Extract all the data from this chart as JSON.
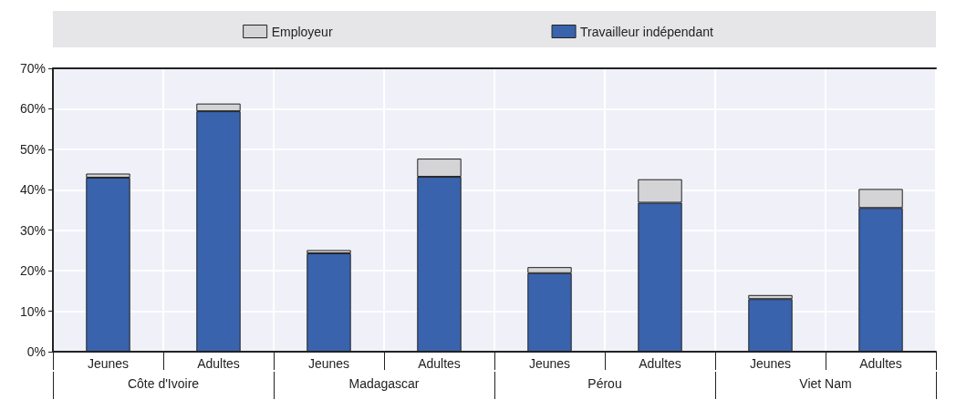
{
  "chart_data": {
    "type": "bar",
    "stacked": true,
    "categories": [
      "Jeunes",
      "Adultes",
      "Jeunes",
      "Adultes",
      "Jeunes",
      "Adultes",
      "Jeunes",
      "Adultes"
    ],
    "annotations": [
      "Côte d'Ivoire",
      "Madagascar",
      "Pérou",
      "Viet Nam"
    ],
    "series": [
      {
        "name": "Travailleur indépendant",
        "color": "#3a63ad",
        "values": [
          43.0,
          59.4,
          24.3,
          43.2,
          19.4,
          36.8,
          13.0,
          35.5
        ]
      },
      {
        "name": "Employeur",
        "color": "#d4d4d6",
        "values": [
          1.0,
          1.9,
          0.8,
          4.5,
          1.5,
          5.8,
          1.0,
          4.7
        ]
      }
    ],
    "ylim": [
      0,
      70
    ],
    "yticks": [
      {
        "value": 0,
        "label": "0%"
      },
      {
        "value": 10,
        "label": "10%"
      },
      {
        "value": 20,
        "label": "20%"
      },
      {
        "value": 30,
        "label": "30%"
      },
      {
        "value": 40,
        "label": "40%"
      },
      {
        "value": 50,
        "label": "50%"
      },
      {
        "value": 60,
        "label": "60%"
      },
      {
        "value": 70,
        "label": "70%"
      }
    ],
    "grid": true,
    "legend": "top"
  }
}
